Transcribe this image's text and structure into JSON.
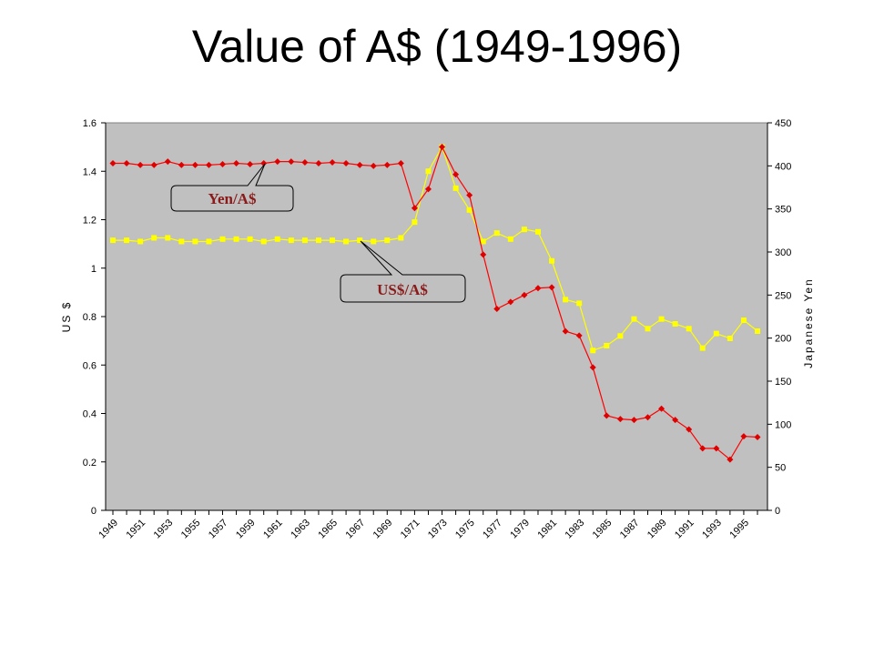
{
  "slide": {
    "title": "Value of A$ (1949-1996)"
  },
  "colors": {
    "plot_bg": "#c0c0c0",
    "yen_series": "#ff0000",
    "yen_marker": "#e00000",
    "usd_series": "#ffff00",
    "callout_text": "#8b1a1a"
  },
  "chart_data": {
    "type": "line",
    "title": "",
    "xlabel": "",
    "ylabel": "US $",
    "y2label": "Japanese Yen",
    "ylim": [
      0,
      1.6
    ],
    "yticks": [
      0,
      0.2,
      0.4,
      0.6,
      0.8,
      1,
      1.2,
      1.4,
      1.6
    ],
    "y2lim": [
      0,
      450
    ],
    "y2ticks": [
      0,
      50,
      100,
      150,
      200,
      250,
      300,
      350,
      400,
      450
    ],
    "grid": false,
    "x": [
      1949,
      1950,
      1951,
      1952,
      1953,
      1954,
      1955,
      1956,
      1957,
      1958,
      1959,
      1960,
      1961,
      1962,
      1963,
      1964,
      1965,
      1966,
      1967,
      1968,
      1969,
      1970,
      1971,
      1972,
      1973,
      1974,
      1975,
      1976,
      1977,
      1978,
      1979,
      1980,
      1981,
      1982,
      1983,
      1984,
      1985,
      1986,
      1987,
      1988,
      1989,
      1990,
      1991,
      1992,
      1993,
      1994,
      1995,
      1996
    ],
    "xticklabels": [
      "1949",
      "1951",
      "1953",
      "1955",
      "1957",
      "1959",
      "1961",
      "1963",
      "1965",
      "1967",
      "1969",
      "1971",
      "1973",
      "1975",
      "1977",
      "1979",
      "1981",
      "1983",
      "1985",
      "1987",
      "1989",
      "1991",
      "1993",
      "1995"
    ],
    "series": [
      {
        "name": "Yen/A$",
        "axis": "right",
        "values": [
          403,
          403,
          401,
          401,
          405,
          401,
          401,
          401,
          402,
          403,
          402,
          403,
          405,
          405,
          404,
          403,
          404,
          403,
          401,
          400,
          401,
          403,
          351,
          373,
          422,
          390,
          366,
          297,
          234,
          242,
          250,
          258,
          259,
          208,
          203,
          166,
          110,
          106,
          105,
          108,
          118,
          105,
          94,
          72,
          72,
          59,
          86,
          85
        ]
      },
      {
        "name": "US$/A$",
        "axis": "left",
        "values": [
          1.115,
          1.115,
          1.11,
          1.125,
          1.125,
          1.11,
          1.11,
          1.11,
          1.12,
          1.12,
          1.12,
          1.11,
          1.12,
          1.115,
          1.115,
          1.115,
          1.115,
          1.11,
          1.115,
          1.11,
          1.115,
          1.125,
          1.19,
          1.4,
          1.5,
          1.33,
          1.24,
          1.11,
          1.145,
          1.12,
          1.16,
          1.15,
          1.03,
          0.87,
          0.855,
          0.66,
          0.68,
          0.72,
          0.79,
          0.75,
          0.79,
          0.77,
          0.75,
          0.67,
          0.73,
          0.71,
          0.785,
          0.74
        ]
      }
    ],
    "annotations": [
      {
        "text": "Yen/A$",
        "points_to": 1961
      },
      {
        "text": "US$/A$",
        "points_to": 1968
      }
    ]
  }
}
